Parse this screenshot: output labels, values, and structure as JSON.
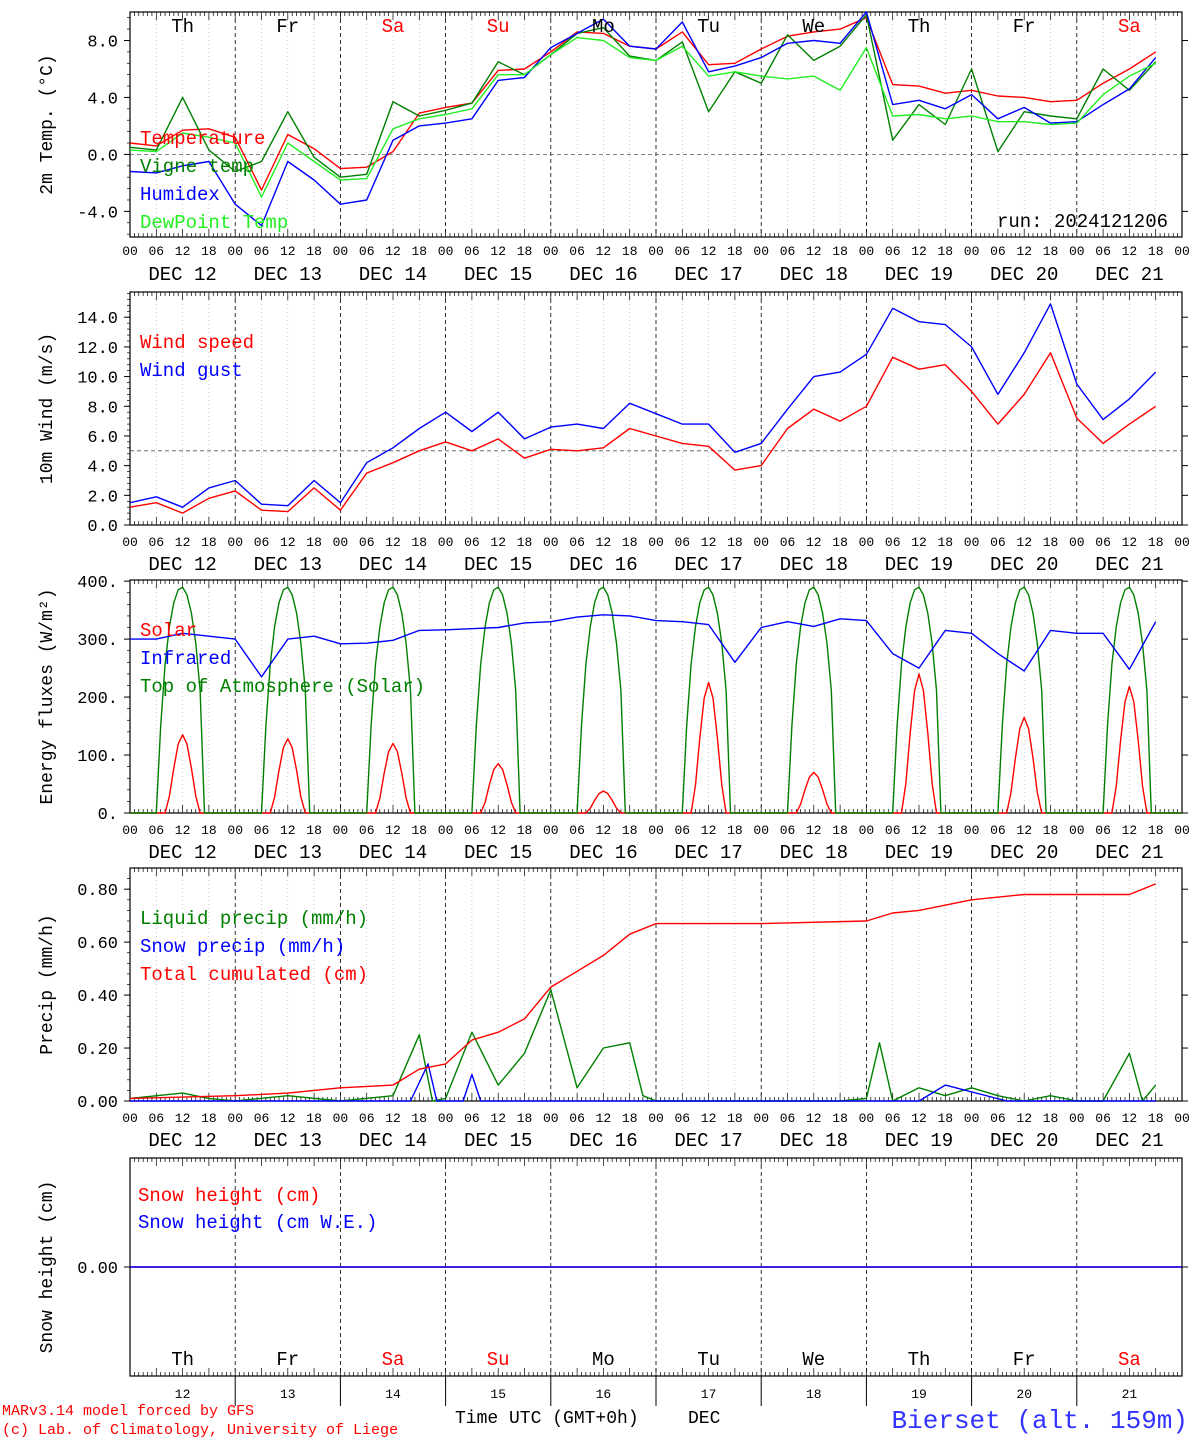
{
  "meteogram": {
    "run": "run: 2024121206",
    "footer": {
      "model": "MARv3.14 model forced by GFS",
      "credit": "(c) Lab. of Climatology, University of Liege",
      "xtitle": "Time UTC (GMT+0h)",
      "month": "DEC",
      "station": "Bierset (alt. 159m)"
    },
    "days": [
      "Th",
      "Fr",
      "Sa",
      "Su",
      "Mo",
      "Tu",
      "We",
      "Th",
      "Fr",
      "Sa"
    ],
    "weekend_days": [
      2,
      3,
      9
    ],
    "date_labels": [
      "DEC 12",
      "DEC 13",
      "DEC 14",
      "DEC 15",
      "DEC 16",
      "DEC 17",
      "DEC 18",
      "DEC 19",
      "DEC 20",
      "DEC 21"
    ],
    "day_numbers": [
      "12",
      "13",
      "14",
      "15",
      "16",
      "17",
      "18",
      "19",
      "20",
      "21"
    ],
    "hour_ticks": [
      "00",
      "06",
      "12",
      "18"
    ],
    "colors": {
      "red": "#ff0000",
      "green": "#008000",
      "blue": "#0000ff",
      "lightgreen": "#22ee22",
      "station": "#3333ff"
    }
  },
  "chart_data": [
    {
      "type": "line",
      "ylabel": "2m Temp. (°C)",
      "ylim": [
        -5.8,
        10
      ],
      "yticks": [
        "-4.0",
        "0.0",
        "4.0",
        "8.0"
      ],
      "ytick_values": [
        -4,
        0,
        4,
        8
      ],
      "reference_line": 0,
      "x_unit": "hours from 2024-12-12 00 UTC",
      "series": [
        {
          "name": "Temperature",
          "color": "#ff0000",
          "x": [
            0,
            6,
            12,
            18,
            24,
            30,
            36,
            42,
            48,
            54,
            60,
            66,
            72,
            78,
            84,
            90,
            96,
            102,
            108,
            114,
            120,
            126,
            132,
            138,
            144,
            150,
            156,
            162,
            168,
            174,
            180,
            186,
            192,
            198,
            204,
            210,
            216,
            222,
            228,
            234
          ],
          "values": [
            0.8,
            0.6,
            1.7,
            1.8,
            1.2,
            -2.5,
            1.4,
            0.4,
            -1.0,
            -0.9,
            0.2,
            2.9,
            3.3,
            3.6,
            5.9,
            6.0,
            7.2,
            8.6,
            8.5,
            7.6,
            7.4,
            8.6,
            6.3,
            6.4,
            7.4,
            8.3,
            8.6,
            8.8,
            9.6,
            4.9,
            4.8,
            4.3,
            4.5,
            4.1,
            4.0,
            3.7,
            3.8,
            5.0,
            6.0,
            7.2
          ]
        },
        {
          "name": "Vigne temp",
          "color": "#008000",
          "x": [
            0,
            6,
            12,
            18,
            24,
            30,
            36,
            42,
            48,
            54,
            60,
            66,
            72,
            78,
            84,
            90,
            96,
            102,
            108,
            114,
            120,
            126,
            132,
            138,
            144,
            150,
            156,
            162,
            168,
            174,
            180,
            186,
            192,
            198,
            204,
            210,
            216,
            222,
            228,
            234
          ],
          "values": [
            0.5,
            0.3,
            4.0,
            0.3,
            -1.2,
            -0.5,
            3.0,
            -0.2,
            -1.6,
            -1.4,
            3.7,
            2.7,
            3.1,
            3.6,
            6.5,
            5.6,
            7.0,
            8.5,
            8.9,
            6.9,
            6.6,
            7.9,
            3.0,
            5.8,
            5.0,
            8.4,
            6.6,
            7.6,
            9.8,
            1.0,
            3.5,
            2.1,
            6.0,
            0.2,
            3.0,
            2.7,
            2.5,
            6.0,
            4.5,
            6.5
          ]
        },
        {
          "name": "Humidex",
          "color": "#0000ff",
          "x": [
            0,
            6,
            12,
            18,
            24,
            30,
            36,
            42,
            48,
            54,
            60,
            66,
            72,
            78,
            84,
            90,
            96,
            102,
            108,
            114,
            120,
            126,
            132,
            138,
            144,
            150,
            156,
            162,
            168,
            174,
            180,
            186,
            192,
            198,
            204,
            210,
            216,
            222,
            228,
            234
          ],
          "values": [
            -1.2,
            -1.3,
            -0.8,
            -0.5,
            -3.5,
            -5.0,
            -0.5,
            -1.8,
            -3.5,
            -3.2,
            1.0,
            2.0,
            2.2,
            2.5,
            5.2,
            5.4,
            7.5,
            8.5,
            9.5,
            7.6,
            7.4,
            9.3,
            5.8,
            6.2,
            6.8,
            7.8,
            8.0,
            7.8,
            10.0,
            3.5,
            3.8,
            3.2,
            4.2,
            2.5,
            3.3,
            2.2,
            2.3,
            3.5,
            4.6,
            6.8
          ]
        },
        {
          "name": "DewPoint Temp",
          "color": "#22ee22",
          "x": [
            0,
            6,
            12,
            18,
            24,
            30,
            36,
            42,
            48,
            54,
            60,
            66,
            72,
            78,
            84,
            90,
            96,
            102,
            108,
            114,
            120,
            126,
            132,
            138,
            144,
            150,
            156,
            162,
            168,
            174,
            180,
            186,
            192,
            198,
            204,
            210,
            216,
            222,
            228,
            234
          ],
          "values": [
            0.3,
            0.2,
            1.5,
            1.2,
            0.8,
            -3.0,
            0.8,
            -0.5,
            -1.8,
            -1.7,
            1.8,
            2.5,
            2.8,
            3.2,
            5.6,
            5.6,
            7.0,
            8.2,
            8.0,
            6.8,
            6.6,
            7.6,
            5.5,
            5.8,
            5.5,
            5.3,
            5.5,
            4.5,
            7.5,
            2.7,
            2.8,
            2.5,
            2.7,
            2.3,
            2.3,
            2.1,
            2.2,
            4.2,
            5.5,
            6.4
          ]
        }
      ]
    },
    {
      "type": "line",
      "ylabel": "10m Wind (m/s)",
      "ylim": [
        0,
        15.7
      ],
      "yticks": [
        "0.0",
        "2.0",
        "4.0",
        "6.0",
        "8.0",
        "10.0",
        "12.0",
        "14.0"
      ],
      "ytick_values": [
        0,
        2,
        4,
        6,
        8,
        10,
        12,
        14
      ],
      "reference_line": 5,
      "x_unit": "hours from 2024-12-12 00 UTC",
      "series": [
        {
          "name": "Wind speed",
          "color": "#ff0000",
          "x": [
            0,
            6,
            12,
            18,
            24,
            30,
            36,
            42,
            48,
            54,
            60,
            66,
            72,
            78,
            84,
            90,
            96,
            102,
            108,
            114,
            120,
            126,
            132,
            138,
            144,
            150,
            156,
            162,
            168,
            174,
            180,
            186,
            192,
            198,
            204,
            210,
            216,
            222,
            228,
            234
          ],
          "values": [
            1.2,
            1.5,
            0.8,
            1.8,
            2.3,
            1.0,
            0.9,
            2.5,
            1.0,
            3.5,
            4.2,
            5.0,
            5.6,
            5.0,
            5.8,
            4.5,
            5.1,
            5.0,
            5.2,
            6.5,
            6.0,
            5.5,
            5.3,
            3.7,
            4.0,
            6.5,
            7.8,
            7.0,
            8.0,
            11.3,
            10.5,
            10.8,
            9.0,
            6.8,
            8.8,
            11.6,
            7.2,
            5.5,
            6.8,
            8.0
          ]
        },
        {
          "name": "Wind gust",
          "color": "#0000ff",
          "x": [
            0,
            6,
            12,
            18,
            24,
            30,
            36,
            42,
            48,
            54,
            60,
            66,
            72,
            78,
            84,
            90,
            96,
            102,
            108,
            114,
            120,
            126,
            132,
            138,
            144,
            150,
            156,
            162,
            168,
            174,
            180,
            186,
            192,
            198,
            204,
            210,
            216,
            222,
            228,
            234
          ],
          "values": [
            1.5,
            1.9,
            1.2,
            2.5,
            3.0,
            1.4,
            1.3,
            3.0,
            1.5,
            4.2,
            5.2,
            6.5,
            7.6,
            6.3,
            7.6,
            5.8,
            6.6,
            6.8,
            6.5,
            8.2,
            7.5,
            6.8,
            6.8,
            4.9,
            5.5,
            7.8,
            10.0,
            10.3,
            11.5,
            14.6,
            13.7,
            13.5,
            12.0,
            8.8,
            11.6,
            14.9,
            9.5,
            7.1,
            8.5,
            10.3
          ]
        }
      ]
    },
    {
      "type": "line",
      "ylabel": "Energy fluxes (W/m²)",
      "ylim": [
        0,
        402
      ],
      "yticks": [
        "0.",
        "100.",
        "200.",
        "300.",
        "400."
      ],
      "ytick_values": [
        0,
        100,
        200,
        300,
        400
      ],
      "x_unit": "hours from 2024-12-12 00 UTC",
      "solar_peak_by_day": [
        135,
        128,
        120,
        85,
        38,
        225,
        70,
        240,
        165,
        218
      ],
      "top_of_atmosphere_peak": 390,
      "series": [
        {
          "name": "Solar",
          "color": "#ff0000"
        },
        {
          "name": "Infrared",
          "color": "#0000ff",
          "x": [
            0,
            6,
            12,
            18,
            24,
            30,
            36,
            42,
            48,
            54,
            60,
            66,
            72,
            78,
            84,
            90,
            96,
            102,
            108,
            114,
            120,
            126,
            132,
            138,
            144,
            150,
            156,
            162,
            168,
            174,
            180,
            186,
            192,
            198,
            204,
            210,
            216,
            222,
            228,
            234
          ],
          "values": [
            300,
            300,
            310,
            305,
            300,
            235,
            300,
            305,
            292,
            293,
            298,
            315,
            316,
            318,
            320,
            328,
            330,
            338,
            342,
            340,
            332,
            330,
            325,
            260,
            320,
            330,
            322,
            335,
            332,
            275,
            250,
            315,
            310,
            275,
            245,
            315,
            310,
            310,
            248,
            330
          ]
        },
        {
          "name": "Top of Atmosphere (Solar)",
          "color": "#008000"
        }
      ]
    },
    {
      "type": "line",
      "ylabel": "Precip (mm/h)",
      "ylim": [
        0,
        0.88
      ],
      "yticks": [
        "0.00",
        "0.20",
        "0.40",
        "0.60",
        "0.80"
      ],
      "ytick_values": [
        0,
        0.2,
        0.4,
        0.6,
        0.8
      ],
      "x_unit": "hours from 2024-12-12 00 UTC",
      "series": [
        {
          "name": "Liquid precip (mm/h)",
          "color": "#008000",
          "x": [
            0,
            12,
            18,
            24,
            36,
            48,
            60,
            66,
            69,
            72,
            78,
            84,
            90,
            96,
            102,
            108,
            114,
            117,
            120,
            126,
            132,
            138,
            144,
            150,
            156,
            162,
            168,
            171,
            174,
            180,
            186,
            192,
            198,
            204,
            210,
            216,
            222,
            228,
            231,
            234
          ],
          "values": [
            0.01,
            0.03,
            0.01,
            0.0,
            0.02,
            0.0,
            0.02,
            0.25,
            0.0,
            0.01,
            0.26,
            0.06,
            0.18,
            0.42,
            0.05,
            0.2,
            0.22,
            0.02,
            0.0,
            0.0,
            0.0,
            0.0,
            0.0,
            0.0,
            0.0,
            0.0,
            0.01,
            0.22,
            0.0,
            0.05,
            0.02,
            0.05,
            0.02,
            0.0,
            0.02,
            0.0,
            0.0,
            0.18,
            0.0,
            0.06
          ]
        },
        {
          "name": "Snow precip (mm/h)",
          "color": "#0000ff",
          "x": [
            0,
            48,
            64,
            68,
            70,
            76,
            78,
            80,
            84,
            180,
            186,
            200,
            234
          ],
          "values": [
            0.0,
            0.0,
            0.0,
            0.14,
            0.0,
            0.0,
            0.1,
            0.0,
            0.0,
            0.0,
            0.06,
            0.0,
            0.0
          ]
        },
        {
          "name": "Total cumulated (cm)",
          "color": "#ff0000",
          "x": [
            0,
            24,
            36,
            48,
            60,
            66,
            72,
            78,
            84,
            90,
            96,
            102,
            108,
            114,
            120,
            132,
            144,
            168,
            174,
            180,
            192,
            204,
            216,
            228,
            234
          ],
          "values": [
            0.01,
            0.02,
            0.03,
            0.05,
            0.06,
            0.12,
            0.14,
            0.23,
            0.26,
            0.31,
            0.43,
            0.49,
            0.55,
            0.63,
            0.67,
            0.67,
            0.67,
            0.68,
            0.71,
            0.72,
            0.76,
            0.78,
            0.78,
            0.78,
            0.82
          ]
        }
      ]
    },
    {
      "type": "line",
      "ylabel": "Snow height (cm)",
      "ylim": [
        -1,
        1
      ],
      "yticks": [
        "0.00"
      ],
      "ytick_values": [
        0
      ],
      "series": [
        {
          "name": "Snow height (cm)",
          "color": "#ff0000",
          "x": [
            0,
            240
          ],
          "values": [
            0,
            0
          ]
        },
        {
          "name": "Snow height (cm W.E.)",
          "color": "#0000ff",
          "x": [
            0,
            240
          ],
          "values": [
            0,
            0
          ]
        }
      ]
    }
  ]
}
